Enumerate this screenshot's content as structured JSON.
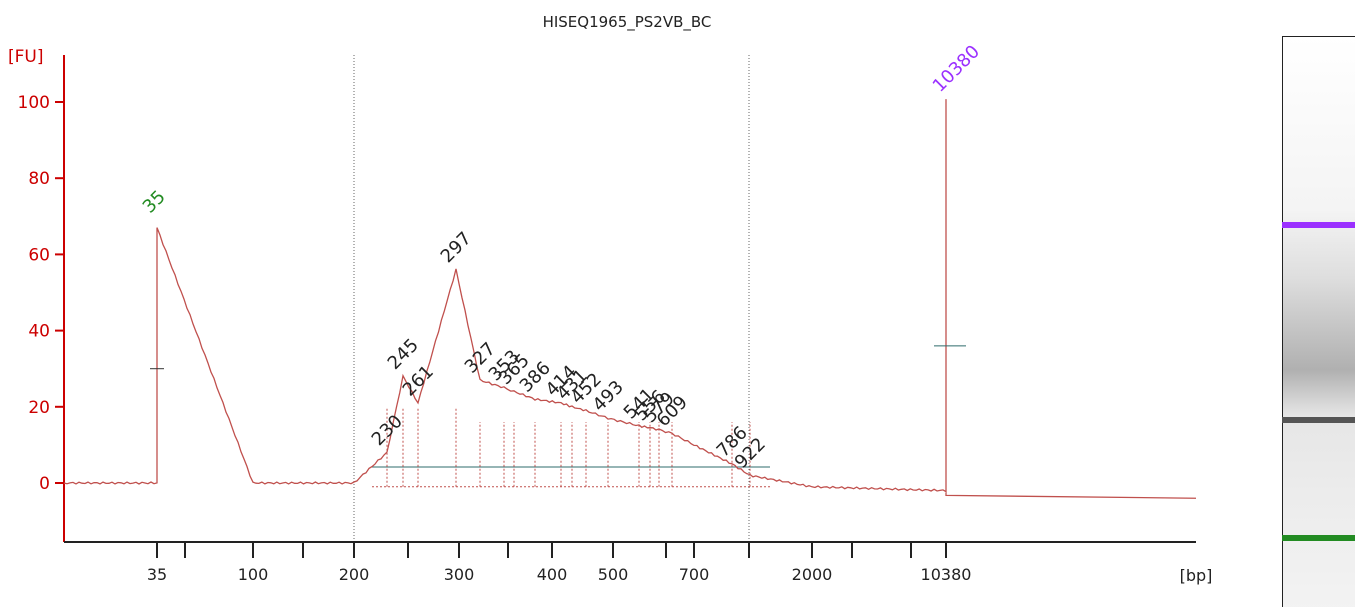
{
  "chart_data": {
    "type": "line",
    "title": "HISEQ1965_PS2VB_BC",
    "ylabel": "[FU]",
    "xlabel": "[bp]",
    "ylim": [
      -15,
      110
    ],
    "yticks": [
      0,
      20,
      40,
      60,
      80,
      100
    ],
    "xticks": [
      {
        "label": "35",
        "time": 0
      },
      {
        "label": "",
        "time": 1
      },
      {
        "label": "100",
        "time": 2
      },
      {
        "label": "",
        "time": 3
      },
      {
        "label": "200",
        "time": 4
      },
      {
        "label": "",
        "time": 5
      },
      {
        "label": "300",
        "time": 6
      },
      {
        "label": "",
        "time": 7
      },
      {
        "label": "400",
        "time": 8
      },
      {
        "label": "500",
        "time": 9
      },
      {
        "label": "",
        "time": 10
      },
      {
        "label": "700",
        "time": 11
      },
      {
        "label": "",
        "time": 12
      },
      {
        "label": "2000",
        "time": 13
      },
      {
        "label": "",
        "time": 14
      },
      {
        "label": "",
        "time": 15
      },
      {
        "label": "10380",
        "time": 16
      }
    ],
    "lower_marker": {
      "label": "35",
      "size_bp": 35,
      "color": "#228b22"
    },
    "upper_marker": {
      "label": "10380",
      "size_bp": 10380,
      "color": "#9b30ff"
    },
    "region": {
      "from_bp": 200,
      "to_bp": 800
    },
    "peaks": [
      {
        "label": "230",
        "size_bp": 230
      },
      {
        "label": "245",
        "size_bp": 245
      },
      {
        "label": "261",
        "size_bp": 261
      },
      {
        "label": "297",
        "size_bp": 297
      },
      {
        "label": "327",
        "size_bp": 327
      },
      {
        "label": "353",
        "size_bp": 353
      },
      {
        "label": "365",
        "size_bp": 365
      },
      {
        "label": "386",
        "size_bp": 386
      },
      {
        "label": "414",
        "size_bp": 414
      },
      {
        "label": "431",
        "size_bp": 431
      },
      {
        "label": "452",
        "size_bp": 452
      },
      {
        "label": "493",
        "size_bp": 493
      },
      {
        "label": "541",
        "size_bp": 541
      },
      {
        "label": "556",
        "size_bp": 556
      },
      {
        "label": "579",
        "size_bp": 579
      },
      {
        "label": "609",
        "size_bp": 609
      },
      {
        "label": "786",
        "size_bp": 786
      },
      {
        "label": "922",
        "size_bp": 922
      }
    ],
    "series": [
      {
        "color": "#c0504d",
        "points": [
          [
            "35",
            0
          ],
          [
            "35",
            67
          ],
          [
            "100",
            0
          ],
          [
            "200",
            0
          ],
          [
            "230",
            8
          ],
          [
            "245",
            28
          ],
          [
            "261",
            21
          ],
          [
            "297",
            56
          ],
          [
            "327",
            27
          ],
          [
            "353",
            25
          ],
          [
            "365",
            24
          ],
          [
            "386",
            22
          ],
          [
            "414",
            21
          ],
          [
            "431",
            20
          ],
          [
            "452",
            19
          ],
          [
            "493",
            17
          ],
          [
            "541",
            15
          ],
          [
            "556",
            14.5
          ],
          [
            "579",
            14
          ],
          [
            "609",
            13
          ],
          [
            "700",
            10
          ],
          [
            "786",
            5
          ],
          [
            "922",
            2
          ],
          [
            "2000",
            -1
          ],
          [
            "10380",
            -2
          ],
          [
            "10380",
            101
          ],
          [
            "10380",
            -3
          ]
        ]
      }
    ],
    "gel_bands": [
      {
        "label": "10380",
        "color": "#9b30ff"
      },
      {
        "label": "297",
        "color": "#555555"
      },
      {
        "label": "35",
        "color": "#228b22"
      }
    ]
  }
}
